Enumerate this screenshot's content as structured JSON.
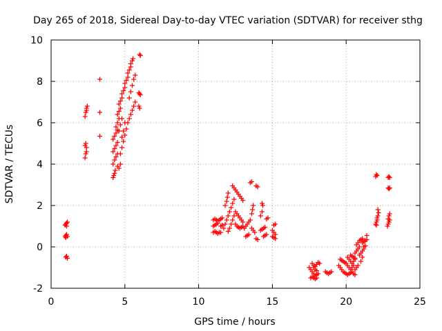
{
  "chart_data": {
    "type": "scatter",
    "title": "Day 265 of 2018, Sidereal Day-to-day VTEC variation (SDTVAR) for receiver sthg",
    "xlabel": "GPS time / hours",
    "ylabel": "SDTVAR / TECUs",
    "xlim": [
      0,
      25
    ],
    "ylim": [
      -2,
      10
    ],
    "xticks": [
      0,
      5,
      10,
      15,
      20,
      25
    ],
    "yticks": [
      -2,
      0,
      2,
      4,
      6,
      8,
      10
    ],
    "xtick_labels": [
      "0",
      "5",
      "10",
      "15",
      "20",
      "25"
    ],
    "ytick_labels": [
      "-2",
      "0",
      "2",
      "4",
      "6",
      "8",
      "10"
    ],
    "grid": true,
    "marker": "+",
    "color": "#ff0000",
    "series": [
      {
        "name": "SDTVAR",
        "points": [
          [
            1.0,
            -0.5
          ],
          [
            1.05,
            -0.45
          ],
          [
            1.1,
            -0.55
          ],
          [
            0.95,
            0.5
          ],
          [
            1.0,
            0.55
          ],
          [
            1.05,
            0.6
          ],
          [
            1.1,
            0.5
          ],
          [
            1.0,
            0.45
          ],
          [
            0.95,
            1.05
          ],
          [
            1.0,
            1.1
          ],
          [
            1.05,
            1.15
          ],
          [
            1.1,
            1.2
          ],
          [
            1.05,
            1.0
          ],
          [
            2.3,
            4.3
          ],
          [
            2.35,
            4.5
          ],
          [
            2.4,
            4.6
          ],
          [
            2.3,
            4.9
          ],
          [
            2.35,
            5.0
          ],
          [
            2.4,
            4.8
          ],
          [
            2.3,
            6.3
          ],
          [
            2.35,
            6.5
          ],
          [
            2.4,
            6.6
          ],
          [
            2.45,
            6.8
          ],
          [
            2.4,
            6.7
          ],
          [
            3.3,
            8.1
          ],
          [
            3.3,
            6.5
          ],
          [
            3.3,
            5.35
          ],
          [
            4.2,
            3.35
          ],
          [
            4.25,
            3.45
          ],
          [
            4.3,
            3.55
          ],
          [
            4.35,
            3.7
          ],
          [
            4.2,
            4.0
          ],
          [
            4.3,
            4.2
          ],
          [
            4.4,
            4.35
          ],
          [
            4.5,
            4.5
          ],
          [
            4.2,
            4.6
          ],
          [
            4.3,
            4.75
          ],
          [
            4.4,
            4.9
          ],
          [
            4.5,
            5.05
          ],
          [
            4.2,
            5.2
          ],
          [
            4.3,
            5.35
          ],
          [
            4.4,
            5.5
          ],
          [
            4.5,
            5.65
          ],
          [
            4.4,
            5.8
          ],
          [
            4.5,
            6.0
          ],
          [
            4.6,
            6.2
          ],
          [
            4.5,
            6.4
          ],
          [
            4.6,
            6.55
          ],
          [
            4.7,
            6.7
          ],
          [
            4.6,
            6.9
          ],
          [
            4.7,
            7.05
          ],
          [
            4.8,
            7.2
          ],
          [
            4.8,
            7.4
          ],
          [
            4.9,
            7.55
          ],
          [
            5.0,
            7.7
          ],
          [
            5.0,
            7.9
          ],
          [
            5.1,
            8.05
          ],
          [
            5.2,
            8.2
          ],
          [
            5.2,
            8.4
          ],
          [
            5.3,
            8.55
          ],
          [
            5.4,
            8.7
          ],
          [
            5.4,
            8.85
          ],
          [
            5.5,
            9.0
          ],
          [
            5.55,
            9.1
          ],
          [
            4.7,
            4.5
          ],
          [
            4.8,
            4.8
          ],
          [
            4.9,
            5.1
          ],
          [
            5.0,
            5.4
          ],
          [
            5.1,
            5.7
          ],
          [
            5.2,
            6.0
          ],
          [
            5.3,
            6.2
          ],
          [
            5.4,
            6.4
          ],
          [
            5.5,
            6.6
          ],
          [
            5.6,
            6.8
          ],
          [
            5.7,
            7.0
          ],
          [
            4.6,
            3.8
          ],
          [
            4.7,
            4.0
          ],
          [
            4.5,
            3.9
          ],
          [
            4.8,
            5.3
          ],
          [
            4.9,
            5.6
          ],
          [
            5.0,
            6.0
          ],
          [
            4.6,
            5.6
          ],
          [
            4.7,
            5.9
          ],
          [
            4.8,
            6.2
          ],
          [
            5.3,
            7.2
          ],
          [
            5.4,
            7.5
          ],
          [
            5.5,
            7.8
          ],
          [
            5.6,
            8.1
          ],
          [
            5.7,
            8.3
          ],
          [
            6.0,
            9.3
          ],
          [
            6.05,
            9.25
          ],
          [
            5.95,
            7.45
          ],
          [
            6.0,
            7.4
          ],
          [
            6.05,
            7.35
          ],
          [
            5.95,
            6.8
          ],
          [
            6.0,
            6.7
          ],
          [
            11.0,
            0.7
          ],
          [
            11.1,
            0.75
          ],
          [
            11.2,
            0.7
          ],
          [
            11.3,
            0.65
          ],
          [
            11.4,
            0.7
          ],
          [
            11.5,
            0.7
          ],
          [
            11.0,
            1.0
          ],
          [
            11.1,
            1.05
          ],
          [
            11.2,
            1.1
          ],
          [
            11.3,
            1.15
          ],
          [
            11.5,
            1.0
          ],
          [
            11.6,
            1.05
          ],
          [
            11.0,
            1.3
          ],
          [
            11.1,
            1.35
          ],
          [
            11.2,
            1.3
          ],
          [
            11.3,
            1.25
          ],
          [
            11.4,
            1.3
          ],
          [
            11.5,
            1.35
          ],
          [
            11.6,
            1.4
          ],
          [
            11.7,
            0.9
          ],
          [
            11.8,
            1.1
          ],
          [
            11.9,
            1.3
          ],
          [
            12.0,
            1.5
          ],
          [
            11.8,
            2.0
          ],
          [
            11.9,
            2.2
          ],
          [
            11.95,
            2.4
          ],
          [
            12.0,
            2.6
          ],
          [
            12.0,
            0.75
          ],
          [
            12.1,
            0.9
          ],
          [
            12.2,
            1.1
          ],
          [
            12.3,
            1.3
          ],
          [
            12.4,
            1.5
          ],
          [
            12.1,
            1.7
          ],
          [
            12.2,
            1.9
          ],
          [
            12.3,
            2.1
          ],
          [
            12.4,
            2.3
          ],
          [
            12.3,
            2.95
          ],
          [
            12.4,
            2.85
          ],
          [
            12.5,
            2.75
          ],
          [
            12.6,
            2.65
          ],
          [
            12.7,
            2.55
          ],
          [
            12.8,
            2.45
          ],
          [
            12.9,
            2.35
          ],
          [
            13.0,
            2.25
          ],
          [
            12.5,
            1.1
          ],
          [
            12.6,
            1.0
          ],
          [
            12.7,
            0.95
          ],
          [
            12.8,
            0.9
          ],
          [
            12.9,
            0.95
          ],
          [
            13.0,
            1.0
          ],
          [
            12.5,
            1.7
          ],
          [
            12.6,
            1.6
          ],
          [
            12.7,
            1.5
          ],
          [
            12.8,
            1.4
          ],
          [
            12.9,
            1.3
          ],
          [
            13.0,
            1.2
          ],
          [
            13.1,
            0.9
          ],
          [
            13.2,
            1.0
          ],
          [
            13.3,
            1.1
          ],
          [
            13.4,
            1.2
          ],
          [
            13.5,
            1.3
          ],
          [
            13.2,
            0.5
          ],
          [
            13.3,
            0.55
          ],
          [
            13.4,
            0.6
          ],
          [
            13.5,
            3.1
          ],
          [
            13.6,
            3.15
          ],
          [
            13.6,
            1.6
          ],
          [
            13.65,
            1.8
          ],
          [
            13.7,
            2.0
          ],
          [
            13.6,
            0.9
          ],
          [
            13.7,
            0.8
          ],
          [
            13.8,
            0.7
          ],
          [
            13.9,
            0.4
          ],
          [
            14.0,
            0.35
          ],
          [
            13.9,
            2.95
          ],
          [
            14.0,
            2.9
          ],
          [
            14.2,
            1.5
          ],
          [
            14.3,
            1.7
          ],
          [
            14.3,
            2.1
          ],
          [
            14.35,
            2.0
          ],
          [
            14.2,
            0.8
          ],
          [
            14.3,
            0.85
          ],
          [
            14.4,
            0.9
          ],
          [
            14.5,
            0.95
          ],
          [
            14.4,
            0.5
          ],
          [
            14.5,
            0.55
          ],
          [
            14.6,
            0.6
          ],
          [
            14.6,
            1.35
          ],
          [
            14.7,
            1.4
          ],
          [
            15.0,
            0.8
          ],
          [
            15.1,
            0.7
          ],
          [
            15.2,
            0.6
          ],
          [
            15.0,
            0.5
          ],
          [
            15.1,
            0.45
          ],
          [
            15.2,
            0.4
          ],
          [
            15.1,
            1.05
          ],
          [
            15.2,
            1.1
          ],
          [
            17.5,
            -1.0
          ],
          [
            17.6,
            -1.1
          ],
          [
            17.7,
            -1.2
          ],
          [
            17.8,
            -1.3
          ],
          [
            17.9,
            -1.4
          ],
          [
            18.0,
            -1.35
          ],
          [
            18.1,
            -1.3
          ],
          [
            17.6,
            -1.5
          ],
          [
            17.7,
            -1.45
          ],
          [
            17.8,
            -1.5
          ],
          [
            17.9,
            -1.55
          ],
          [
            18.0,
            -1.5
          ],
          [
            17.7,
            -0.8
          ],
          [
            17.8,
            -0.9
          ],
          [
            17.9,
            -0.95
          ],
          [
            18.0,
            -0.85
          ],
          [
            18.1,
            -0.75
          ],
          [
            18.2,
            -0.8
          ],
          [
            17.8,
            -1.0
          ],
          [
            17.9,
            -1.1
          ],
          [
            18.0,
            -1.15
          ],
          [
            18.6,
            -1.2
          ],
          [
            18.7,
            -1.25
          ],
          [
            18.8,
            -1.3
          ],
          [
            18.9,
            -1.25
          ],
          [
            19.0,
            -1.2
          ],
          [
            19.5,
            -0.9
          ],
          [
            19.6,
            -1.0
          ],
          [
            19.7,
            -1.1
          ],
          [
            19.8,
            -1.2
          ],
          [
            19.9,
            -1.25
          ],
          [
            19.6,
            -0.6
          ],
          [
            19.7,
            -0.65
          ],
          [
            19.8,
            -0.7
          ],
          [
            19.9,
            -0.75
          ],
          [
            20.0,
            -1.3
          ],
          [
            20.1,
            -1.35
          ],
          [
            20.2,
            -1.3
          ],
          [
            20.3,
            -1.25
          ],
          [
            20.4,
            -1.2
          ],
          [
            20.5,
            -1.3
          ],
          [
            20.6,
            -1.35
          ],
          [
            20.0,
            -0.8
          ],
          [
            20.1,
            -0.9
          ],
          [
            20.2,
            -1.0
          ],
          [
            20.3,
            -1.1
          ],
          [
            20.4,
            -1.0
          ],
          [
            20.5,
            -0.9
          ],
          [
            20.1,
            -0.5
          ],
          [
            20.2,
            -0.6
          ],
          [
            20.3,
            -0.7
          ],
          [
            20.4,
            -0.8
          ],
          [
            20.5,
            -0.7
          ],
          [
            20.6,
            -0.6
          ],
          [
            20.3,
            -0.4
          ],
          [
            20.4,
            -0.45
          ],
          [
            20.5,
            -0.5
          ],
          [
            20.6,
            -0.55
          ],
          [
            20.6,
            -1.1
          ],
          [
            20.7,
            -1.0
          ],
          [
            20.8,
            -0.9
          ],
          [
            20.6,
            -0.3
          ],
          [
            20.7,
            -0.2
          ],
          [
            20.8,
            -0.1
          ],
          [
            20.9,
            0.0
          ],
          [
            20.7,
            0.1
          ],
          [
            20.8,
            0.2
          ],
          [
            20.9,
            0.3
          ],
          [
            21.0,
            0.35
          ],
          [
            21.1,
            0.4
          ],
          [
            20.9,
            -0.4
          ],
          [
            21.0,
            -0.3
          ],
          [
            21.1,
            -0.2
          ],
          [
            21.2,
            -0.1
          ],
          [
            21.1,
            0.2
          ],
          [
            21.2,
            0.25
          ],
          [
            21.3,
            0.3
          ],
          [
            21.4,
            0.35
          ],
          [
            21.4,
            0.55
          ],
          [
            21.2,
            0.0
          ],
          [
            21.3,
            0.05
          ],
          [
            21.1,
            -0.5
          ],
          [
            21.0,
            -0.7
          ],
          [
            22.0,
            1.1
          ],
          [
            22.05,
            1.2
          ],
          [
            22.1,
            1.3
          ],
          [
            22.05,
            1.05
          ],
          [
            22.1,
            1.4
          ],
          [
            22.15,
            1.5
          ],
          [
            22.2,
            1.65
          ],
          [
            22.15,
            1.8
          ],
          [
            22.0,
            3.4
          ],
          [
            22.05,
            3.5
          ],
          [
            22.1,
            3.45
          ],
          [
            22.85,
            3.35
          ],
          [
            22.9,
            3.4
          ],
          [
            22.95,
            3.35
          ],
          [
            22.85,
            2.85
          ],
          [
            22.9,
            2.8
          ],
          [
            22.95,
            2.85
          ],
          [
            22.8,
            1.0
          ],
          [
            22.85,
            1.1
          ],
          [
            22.9,
            1.2
          ],
          [
            22.95,
            1.3
          ],
          [
            22.9,
            1.5
          ],
          [
            22.95,
            1.6
          ],
          [
            22.85,
            1.35
          ]
        ]
      }
    ]
  }
}
